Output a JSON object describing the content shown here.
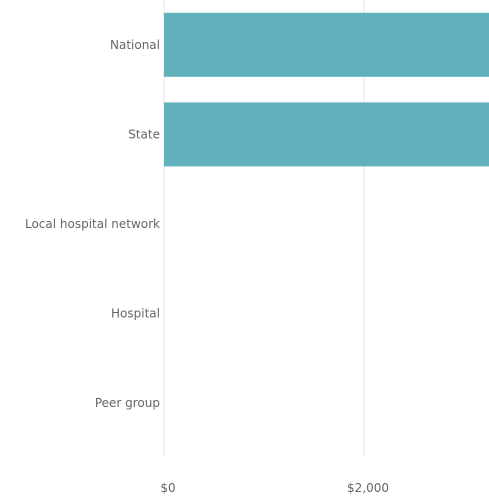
{
  "chart_data": {
    "type": "bar",
    "orientation": "horizontal",
    "categories": [
      "National",
      "State",
      "Local hospital network",
      "Hospital",
      "Peer group"
    ],
    "values": [
      3300,
      3300,
      null,
      null,
      null
    ],
    "xlim": [
      0,
      3250
    ],
    "x_ticks": [
      0,
      2000
    ],
    "x_tick_labels": [
      "$0",
      "$2,000"
    ],
    "grid": true,
    "bar_color": "#60b1bc",
    "title": "",
    "xlabel": "",
    "ylabel": ""
  }
}
